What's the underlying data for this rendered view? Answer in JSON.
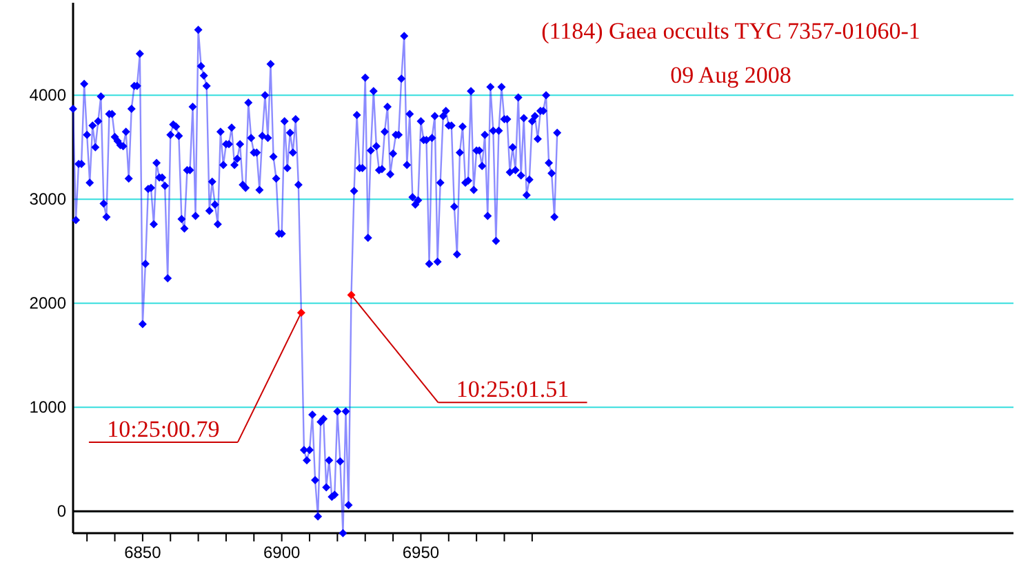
{
  "chart_data": {
    "type": "line",
    "title": "(1184) Gaea occults TYC 7357-01060-1",
    "subtitle": "09 Aug 2008",
    "annotations": [
      {
        "text": "10:25:00.79",
        "x": 6907,
        "y": 1910
      },
      {
        "text": "10:25:01.51",
        "x": 6925,
        "y": 2080
      }
    ],
    "x": [
      6825,
      6826,
      6827,
      6828,
      6829,
      6830,
      6831,
      6832,
      6833,
      6834,
      6835,
      6836,
      6837,
      6838,
      6839,
      6840,
      6841,
      6842,
      6843,
      6844,
      6845,
      6846,
      6847,
      6848,
      6849,
      6850,
      6851,
      6852,
      6853,
      6854,
      6855,
      6856,
      6857,
      6858,
      6859,
      6860,
      6861,
      6862,
      6863,
      6864,
      6865,
      6866,
      6867,
      6868,
      6869,
      6870,
      6871,
      6872,
      6873,
      6874,
      6875,
      6876,
      6877,
      6878,
      6879,
      6880,
      6881,
      6882,
      6883,
      6884,
      6885,
      6886,
      6887,
      6888,
      6889,
      6890,
      6891,
      6892,
      6893,
      6894,
      6895,
      6896,
      6897,
      6898,
      6899,
      6900,
      6901,
      6902,
      6903,
      6904,
      6905,
      6906,
      6907,
      6908,
      6909,
      6910,
      6911,
      6912,
      6913,
      6914,
      6915,
      6916,
      6917,
      6918,
      6919,
      6920,
      6921,
      6922,
      6923,
      6924,
      6925,
      6926,
      6927,
      6928,
      6929,
      6930,
      6931,
      6932,
      6933,
      6934,
      6935,
      6936,
      6937,
      6938,
      6939,
      6940,
      6941,
      6942,
      6943,
      6944,
      6945,
      6946,
      6947,
      6948,
      6949,
      6950,
      6951,
      6952,
      6953,
      6954,
      6955,
      6956,
      6957,
      6958,
      6959,
      6960,
      6961,
      6962,
      6963,
      6964,
      6965,
      6966,
      6967,
      6968,
      6969,
      6970,
      6971,
      6972,
      6973,
      6974,
      6975,
      6976,
      6977,
      6978,
      6979,
      6980,
      6981,
      6982,
      6983,
      6984,
      6985,
      6986,
      6987,
      6988,
      6989,
      6990,
      6991,
      6992,
      6993,
      6994,
      6995,
      6996,
      6997,
      6998,
      6999
    ],
    "series": [
      {
        "color": "#0000ff",
        "colors": [
          "#0000ff",
          "#0000ff",
          "#0000ff",
          "#0000ff",
          "#0000ff",
          "#0000ff",
          "#0000ff",
          "#0000ff",
          "#0000ff",
          "#0000ff",
          "#0000ff",
          "#0000ff",
          "#0000ff",
          "#0000ff",
          "#0000ff",
          "#0000ff",
          "#0000ff",
          "#0000ff",
          "#0000ff",
          "#0000ff",
          "#0000ff",
          "#0000ff",
          "#0000ff",
          "#0000ff",
          "#0000ff",
          "#0000ff",
          "#0000ff",
          "#0000ff",
          "#0000ff",
          "#0000ff",
          "#0000ff",
          "#0000ff",
          "#0000ff",
          "#0000ff",
          "#0000ff",
          "#0000ff",
          "#0000ff",
          "#0000ff",
          "#0000ff",
          "#0000ff",
          "#0000ff",
          "#0000ff",
          "#0000ff",
          "#0000ff",
          "#0000ff",
          "#0000ff",
          "#0000ff",
          "#0000ff",
          "#0000ff",
          "#0000ff",
          "#0000ff",
          "#0000ff",
          "#0000ff",
          "#0000ff",
          "#0000ff",
          "#0000ff",
          "#0000ff",
          "#0000ff",
          "#0000ff",
          "#0000ff",
          "#0000ff",
          "#0000ff",
          "#0000ff",
          "#0000ff",
          "#0000ff",
          "#0000ff",
          "#0000ff",
          "#0000ff",
          "#0000ff",
          "#0000ff",
          "#0000ff",
          "#0000ff",
          "#0000ff",
          "#0000ff",
          "#0000ff",
          "#0000ff",
          "#0000ff",
          "#0000ff",
          "#0000ff",
          "#0000ff",
          "#0000ff",
          "#0000ff",
          "#ff0000",
          "#0000ff",
          "#0000ff",
          "#0000ff",
          "#0000ff",
          "#0000ff",
          "#0000ff",
          "#0000ff",
          "#0000ff",
          "#0000ff",
          "#0000ff",
          "#0000ff",
          "#0000ff",
          "#0000ff",
          "#0000ff",
          "#0000ff",
          "#0000ff",
          "#0000ff",
          "#ff0000",
          "#0000ff",
          "#0000ff",
          "#0000ff",
          "#0000ff",
          "#0000ff",
          "#0000ff",
          "#0000ff",
          "#0000ff",
          "#0000ff",
          "#0000ff",
          "#0000ff",
          "#0000ff",
          "#0000ff",
          "#0000ff",
          "#0000ff",
          "#0000ff",
          "#0000ff",
          "#0000ff",
          "#0000ff",
          "#0000ff",
          "#0000ff",
          "#0000ff",
          "#0000ff",
          "#0000ff",
          "#0000ff",
          "#0000ff",
          "#0000ff",
          "#0000ff",
          "#0000ff",
          "#0000ff",
          "#0000ff",
          "#0000ff",
          "#0000ff",
          "#0000ff",
          "#0000ff",
          "#0000ff",
          "#0000ff",
          "#0000ff",
          "#0000ff",
          "#0000ff",
          "#0000ff",
          "#0000ff",
          "#0000ff",
          "#0000ff",
          "#0000ff",
          "#0000ff",
          "#0000ff",
          "#0000ff",
          "#0000ff",
          "#0000ff",
          "#0000ff",
          "#0000ff",
          "#0000ff",
          "#0000ff",
          "#0000ff",
          "#0000ff",
          "#0000ff",
          "#0000ff",
          "#0000ff",
          "#0000ff",
          "#0000ff",
          "#0000ff",
          "#0000ff",
          "#0000ff",
          "#0000ff",
          "#0000ff",
          "#0000ff",
          "#0000ff",
          "#0000ff",
          "#0000ff",
          "#0000ff",
          "#0000ff",
          "#0000ff",
          "#0000ff"
        ],
        "values": [
          3870,
          2800,
          3340,
          3340,
          4110,
          3620,
          3160,
          3710,
          3500,
          3750,
          3990,
          2960,
          2830,
          3820,
          3820,
          3600,
          3560,
          3520,
          3510,
          3650,
          3200,
          3870,
          4090,
          4090,
          4400,
          1800,
          2380,
          3100,
          3110,
          2760,
          3350,
          3210,
          3210,
          3130,
          2240,
          3620,
          3720,
          3700,
          3610,
          2810,
          2720,
          3280,
          3280,
          3890,
          2840,
          4630,
          4280,
          4190,
          4090,
          2890,
          3170,
          2950,
          2760,
          3650,
          3330,
          3530,
          3530,
          3690,
          3330,
          3390,
          3530,
          3140,
          3110,
          3930,
          3590,
          3450,
          3450,
          3090,
          3610,
          4000,
          3590,
          4300,
          3410,
          3200,
          2670,
          2670,
          3750,
          3300,
          3640,
          3450,
          3770,
          3140,
          1910,
          590,
          490,
          590,
          930,
          300,
          -50,
          860,
          890,
          230,
          490,
          140,
          160,
          960,
          480,
          -210,
          960,
          60,
          2080,
          3080,
          3810,
          3300,
          3300,
          4170,
          2630,
          3470,
          4040,
          3510,
          3280,
          3290,
          3650,
          3890,
          3240,
          3440,
          3620,
          3620,
          4160,
          4570,
          3330,
          3820,
          3020,
          2950,
          2990,
          3750,
          3570,
          3570,
          2380,
          3590,
          3800,
          2400,
          3160,
          3800,
          3850,
          3710,
          3710,
          2930,
          2470,
          3450,
          3700,
          3160,
          3180,
          4040,
          3090,
          3470,
          3470,
          3320,
          3620,
          2840,
          4080,
          3660,
          2600,
          3660,
          4080,
          3770,
          3770,
          3260,
          3500,
          3280,
          3980,
          3230,
          3780,
          3040,
          3190,
          3750,
          3800,
          3580,
          3850,
          3850,
          4000,
          3350,
          3250,
          2830,
          3640
        ]
      }
    ],
    "xlim": [
      6825,
      7163
    ],
    "ylim": [
      -210,
      4890
    ],
    "xticks": [
      {
        "value": 6830,
        "label": null
      },
      {
        "value": 6840,
        "label": null
      },
      6850,
      {
        "value": 6860,
        "label": null
      },
      {
        "value": 6870,
        "label": null
      },
      {
        "value": 6880,
        "label": null
      },
      {
        "value": 6890,
        "label": null
      },
      6900,
      {
        "value": 6910,
        "label": null
      },
      {
        "value": 6920,
        "label": null
      },
      {
        "value": 6930,
        "label": null
      },
      {
        "value": 6940,
        "label": null
      },
      6950,
      {
        "value": 6960,
        "label": null
      },
      {
        "value": 6970,
        "label": null
      },
      {
        "value": 6980,
        "label": null
      },
      {
        "value": 6990,
        "label": null
      }
    ],
    "yticks": [
      0,
      1000,
      2000,
      3000,
      4000
    ],
    "grid": "y",
    "marker": "diamond",
    "line_style": "solid",
    "ref_lines": [
      {
        "axis": "y",
        "value": 0,
        "color": "#000000"
      }
    ]
  }
}
